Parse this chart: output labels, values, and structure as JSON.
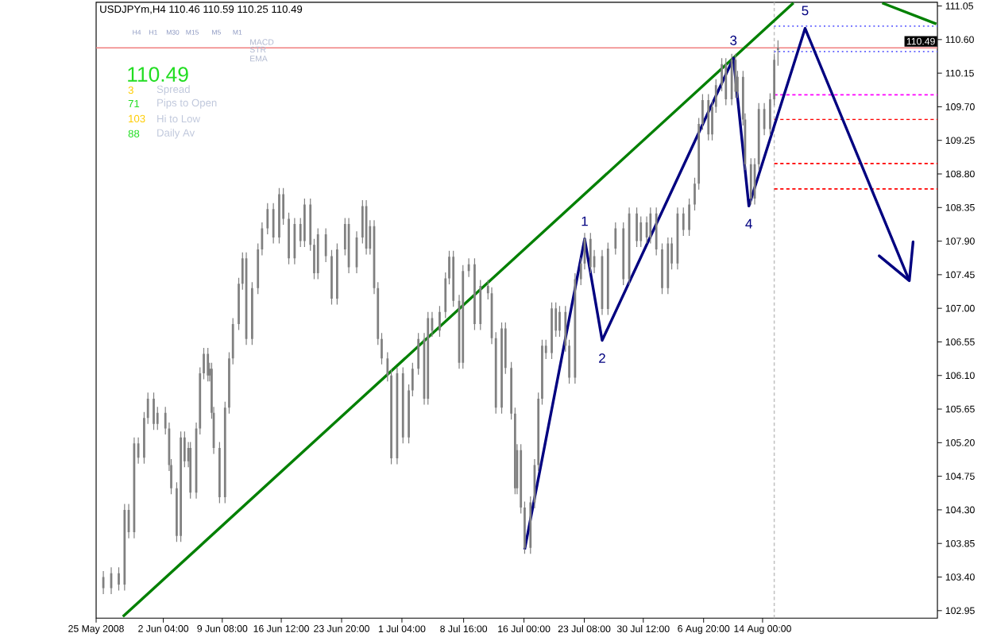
{
  "chart_data": {
    "type": "candlestick",
    "title": "USDJPYm,H4 110.46 110.59 110.25 110.49",
    "color": "#808080",
    "x": [
      "2008-05-25T21:00",
      "2008-05-26T20:00",
      "2008-05-27T18:00",
      "2008-05-28T11:00",
      "2008-05-28T23:00",
      "2008-05-29T15:00",
      "2008-05-30T03:00",
      "2008-05-30T20:00",
      "2008-05-31T07:00",
      "2008-06-01T00:00",
      "2008-06-01T11:00",
      "2008-06-02T10:00",
      "2008-06-02T21:00",
      "2008-06-03T03:00",
      "2008-06-03T19:00",
      "2008-06-04T07:00",
      "2008-06-04T18:00",
      "2008-06-05T05:00",
      "2008-06-05T11:00",
      "2008-06-06T04:00",
      "2008-06-06T15:00",
      "2008-06-07T02:00",
      "2008-06-07T14:00",
      "2008-06-07T19:00",
      "2008-06-08T01:00",
      "2008-06-08T07:00",
      "2008-06-09T00:00",
      "2008-06-09T16:00",
      "2008-06-10T04:00",
      "2008-06-10T15:00",
      "2008-06-11T08:00",
      "2008-06-11T19:00",
      "2008-06-12T06:00",
      "2008-06-12T23:00",
      "2008-06-13T16:00",
      "2008-06-14T04:00",
      "2008-06-14T20:00",
      "2008-06-15T13:00",
      "2008-06-16T06:00",
      "2008-06-16T18:00",
      "2008-06-17T10:00",
      "2008-06-18T03:00",
      "2008-06-18T20:00",
      "2008-06-19T08:00",
      "2008-06-20T01:00",
      "2008-06-20T12:00",
      "2008-06-20T23:00",
      "2008-06-21T22:00",
      "2008-06-22T15:00",
      "2008-06-23T07:00",
      "2008-06-24T06:00",
      "2008-06-24T17:00",
      "2008-06-25T16:00",
      "2008-06-26T09:00",
      "2008-06-26T20:00",
      "2008-06-27T07:00",
      "2008-06-27T19:00",
      "2008-06-28T06:00",
      "2008-06-28T17:00",
      "2008-06-29T10:00",
      "2008-06-29T21:00",
      "2008-06-30T14:00",
      "2008-07-01T07:00",
      "2008-07-02T00:00",
      "2008-07-02T11:00",
      "2008-07-03T04:00",
      "2008-07-03T21:00",
      "2008-07-04T08:00",
      "2008-07-04T20:00",
      "2008-07-05T18:00",
      "2008-07-06T11:00",
      "2008-07-06T22:00",
      "2008-07-07T10:00",
      "2008-07-08T03:00",
      "2008-07-08T14:00",
      "2008-07-09T07:00",
      "2008-07-10T00:00",
      "2008-07-10T17:00",
      "2008-07-11T15:00",
      "2008-07-12T02:00",
      "2008-07-12T14:00",
      "2008-07-13T07:00",
      "2008-07-13T18:00",
      "2008-07-14T11:00",
      "2008-07-14T22:00",
      "2008-07-15T04:00",
      "2008-07-15T15:00",
      "2008-07-16T02:00",
      "2008-07-16T19:00",
      "2008-07-17T07:00",
      "2008-07-17T18:00",
      "2008-07-18T05:00",
      "2008-07-18T16:00",
      "2008-07-19T09:00",
      "2008-07-19T21:00",
      "2008-07-20T08:00",
      "2008-07-21T01:00",
      "2008-07-21T12:00",
      "2008-07-22T05:00",
      "2008-07-22T22:00",
      "2008-07-23T09:00",
      "2008-07-24T02:00",
      "2008-07-24T13:00",
      "2008-07-25T12:00",
      "2008-07-26T05:00",
      "2008-07-27T03:00",
      "2008-07-28T02:00",
      "2008-07-28T19:00",
      "2008-07-29T17:00",
      "2008-07-30T05:00",
      "2008-07-30T22:00",
      "2008-07-31T09:00",
      "2008-08-01T02:00",
      "2008-08-01T19:00",
      "2008-08-02T12:00",
      "2008-08-02T23:00",
      "2008-08-03T16:00",
      "2008-08-04T09:00",
      "2008-08-05T02:00",
      "2008-08-05T18:00",
      "2008-08-06T06:00",
      "2008-08-06T17:00",
      "2008-08-07T10:00",
      "2008-08-07T21:00",
      "2008-08-08T08:00",
      "2008-08-09T01:00",
      "2008-08-09T13:00",
      "2008-08-10T06:00",
      "2008-08-10T17:00",
      "2008-08-10T23:00",
      "2008-08-11T15:00",
      "2008-08-11T21:00",
      "2008-08-12T14:00",
      "2008-08-13T01:00",
      "2008-08-13T13:00",
      "2008-08-14T05:00",
      "2008-08-14T22:00",
      "2008-08-15T10:00",
      "2008-08-15T21:00"
    ],
    "ohlc": [
      [
        103.4,
        103.48,
        103.17,
        103.25
      ],
      [
        103.25,
        103.53,
        103.17,
        103.45
      ],
      [
        103.45,
        103.53,
        103.22,
        103.3
      ],
      [
        103.3,
        104.38,
        103.22,
        104.3
      ],
      [
        104.3,
        104.38,
        103.92,
        104.0
      ],
      [
        104.0,
        105.27,
        103.92,
        105.19
      ],
      [
        105.19,
        105.27,
        104.92,
        105.0
      ],
      [
        105.0,
        105.61,
        104.92,
        105.53
      ],
      [
        105.53,
        105.87,
        105.45,
        105.79
      ],
      [
        105.79,
        105.87,
        105.37,
        105.45
      ],
      [
        105.45,
        105.68,
        105.37,
        105.6
      ],
      [
        105.6,
        105.68,
        105.31,
        105.39
      ],
      [
        105.39,
        105.47,
        104.82,
        104.9
      ],
      [
        104.9,
        104.98,
        104.51,
        104.59
      ],
      [
        104.59,
        104.67,
        103.87,
        103.95
      ],
      [
        103.95,
        105.35,
        103.87,
        105.27
      ],
      [
        105.27,
        105.35,
        104.87,
        104.95
      ],
      [
        104.95,
        105.21,
        104.87,
        105.13
      ],
      [
        105.13,
        105.21,
        104.45,
        104.53
      ],
      [
        104.53,
        105.47,
        104.45,
        105.39
      ],
      [
        105.39,
        106.21,
        105.31,
        106.13
      ],
      [
        106.13,
        106.47,
        106.05,
        106.39
      ],
      [
        106.39,
        106.47,
        106.02,
        106.1
      ],
      [
        106.1,
        106.27,
        106.02,
        106.19
      ],
      [
        106.19,
        106.27,
        105.52,
        105.6
      ],
      [
        105.6,
        105.68,
        105.05,
        105.13
      ],
      [
        105.13,
        105.21,
        104.39,
        104.47
      ],
      [
        104.47,
        105.75,
        104.39,
        105.67
      ],
      [
        105.67,
        106.41,
        105.59,
        106.33
      ],
      [
        106.33,
        106.87,
        106.25,
        106.79
      ],
      [
        106.79,
        107.41,
        106.71,
        107.33
      ],
      [
        107.33,
        107.75,
        107.25,
        107.67
      ],
      [
        107.67,
        107.75,
        106.51,
        106.59
      ],
      [
        106.59,
        107.35,
        106.51,
        107.27
      ],
      [
        107.27,
        107.87,
        107.19,
        107.79
      ],
      [
        107.79,
        108.15,
        107.71,
        108.07
      ],
      [
        108.07,
        108.41,
        107.99,
        108.33
      ],
      [
        108.33,
        108.41,
        107.87,
        107.95
      ],
      [
        107.95,
        108.61,
        107.87,
        108.53
      ],
      [
        108.53,
        108.61,
        108.12,
        108.2
      ],
      [
        108.2,
        108.28,
        107.59,
        107.67
      ],
      [
        107.67,
        108.21,
        107.59,
        108.13
      ],
      [
        108.13,
        108.21,
        107.82,
        107.9
      ],
      [
        107.9,
        108.47,
        107.82,
        108.39
      ],
      [
        108.39,
        108.47,
        107.77,
        107.85
      ],
      [
        107.85,
        107.93,
        107.39,
        107.47
      ],
      [
        107.47,
        108.07,
        107.39,
        107.99
      ],
      [
        107.99,
        108.07,
        107.62,
        107.7
      ],
      [
        107.7,
        107.78,
        107.05,
        107.13
      ],
      [
        107.13,
        107.87,
        107.05,
        107.79
      ],
      [
        107.79,
        108.21,
        107.71,
        108.13
      ],
      [
        108.13,
        108.21,
        107.47,
        107.55
      ],
      [
        107.55,
        108.03,
        107.47,
        107.95
      ],
      [
        107.95,
        108.45,
        107.87,
        108.37
      ],
      [
        108.37,
        108.45,
        107.72,
        107.8
      ],
      [
        107.8,
        108.18,
        107.72,
        108.1
      ],
      [
        108.1,
        108.18,
        107.19,
        107.27
      ],
      [
        107.27,
        107.35,
        106.51,
        106.59
      ],
      [
        106.59,
        106.67,
        106.25,
        106.33
      ],
      [
        106.33,
        106.41,
        106.02,
        106.1
      ],
      [
        106.1,
        106.18,
        104.91,
        104.99
      ],
      [
        104.99,
        106.21,
        104.91,
        106.13
      ],
      [
        106.13,
        106.21,
        105.19,
        105.27
      ],
      [
        105.27,
        105.98,
        105.19,
        105.9
      ],
      [
        105.9,
        106.27,
        105.82,
        106.19
      ],
      [
        106.19,
        106.67,
        106.11,
        106.59
      ],
      [
        106.59,
        106.67,
        105.71,
        105.79
      ],
      [
        105.79,
        106.95,
        105.71,
        106.87
      ],
      [
        106.87,
        106.95,
        106.62,
        106.7
      ],
      [
        106.7,
        107.03,
        106.62,
        106.95
      ],
      [
        106.95,
        107.48,
        106.87,
        107.4
      ],
      [
        107.4,
        107.77,
        107.32,
        107.69
      ],
      [
        107.69,
        107.77,
        107.02,
        107.1
      ],
      [
        107.1,
        107.18,
        106.19,
        106.27
      ],
      [
        106.27,
        107.58,
        106.19,
        107.5
      ],
      [
        107.5,
        107.67,
        107.42,
        107.59
      ],
      [
        107.59,
        107.67,
        106.71,
        106.79
      ],
      [
        106.79,
        107.38,
        106.71,
        107.3
      ],
      [
        107.3,
        107.38,
        107.12,
        107.2
      ],
      [
        107.2,
        107.28,
        106.52,
        106.6
      ],
      [
        106.6,
        106.68,
        105.59,
        105.67
      ],
      [
        105.67,
        106.81,
        105.59,
        106.73
      ],
      [
        106.73,
        106.81,
        106.12,
        106.2
      ],
      [
        106.2,
        106.28,
        105.51,
        105.59
      ],
      [
        105.59,
        105.67,
        104.51,
        104.59
      ],
      [
        104.59,
        105.18,
        104.51,
        105.1
      ],
      [
        105.1,
        105.18,
        104.25,
        104.33
      ],
      [
        104.33,
        104.41,
        103.71,
        103.79
      ],
      [
        103.79,
        104.48,
        103.71,
        104.4
      ],
      [
        104.4,
        104.98,
        104.32,
        104.9
      ],
      [
        104.9,
        105.87,
        104.82,
        105.79
      ],
      [
        105.79,
        106.58,
        105.71,
        106.5
      ],
      [
        106.5,
        106.58,
        106.32,
        106.4
      ],
      [
        106.4,
        107.08,
        106.32,
        107.0
      ],
      [
        107.0,
        107.08,
        106.62,
        106.7
      ],
      [
        106.7,
        107.03,
        106.62,
        106.95
      ],
      [
        106.95,
        107.03,
        106.42,
        106.5
      ],
      [
        106.5,
        106.58,
        105.99,
        106.07
      ],
      [
        106.07,
        107.47,
        105.99,
        107.39
      ],
      [
        107.39,
        107.68,
        107.31,
        107.6
      ],
      [
        107.6,
        108.01,
        107.52,
        107.93
      ],
      [
        107.93,
        108.01,
        107.47,
        107.55
      ],
      [
        107.55,
        107.78,
        107.47,
        107.7
      ],
      [
        107.7,
        107.78,
        106.91,
        106.99
      ],
      [
        106.99,
        107.88,
        106.91,
        107.8
      ],
      [
        107.8,
        108.15,
        107.72,
        108.07
      ],
      [
        108.07,
        108.15,
        107.31,
        107.39
      ],
      [
        107.39,
        108.35,
        107.31,
        108.27
      ],
      [
        108.27,
        108.35,
        107.82,
        107.9
      ],
      [
        107.9,
        108.23,
        107.82,
        108.15
      ],
      [
        108.15,
        108.23,
        107.87,
        107.95
      ],
      [
        107.95,
        108.35,
        107.87,
        108.27
      ],
      [
        108.27,
        108.35,
        107.71,
        107.79
      ],
      [
        107.79,
        107.87,
        107.19,
        107.27
      ],
      [
        107.27,
        107.95,
        107.19,
        107.87
      ],
      [
        107.87,
        107.95,
        107.52,
        107.6
      ],
      [
        107.6,
        108.35,
        107.52,
        108.27
      ],
      [
        108.27,
        108.35,
        107.97,
        108.05
      ],
      [
        108.05,
        108.47,
        107.97,
        108.39
      ],
      [
        108.39,
        108.75,
        108.31,
        108.67
      ],
      [
        108.67,
        109.55,
        108.59,
        109.47
      ],
      [
        109.47,
        109.87,
        109.39,
        109.79
      ],
      [
        109.79,
        109.87,
        109.25,
        109.33
      ],
      [
        109.33,
        109.78,
        109.25,
        109.7
      ],
      [
        109.7,
        110.07,
        109.62,
        109.99
      ],
      [
        109.99,
        110.35,
        109.91,
        110.27
      ],
      [
        110.27,
        110.35,
        109.72,
        109.8
      ],
      [
        109.8,
        110.41,
        109.72,
        110.33
      ],
      [
        110.33,
        110.41,
        109.82,
        109.9
      ],
      [
        109.9,
        110.18,
        109.82,
        110.1
      ],
      [
        110.1,
        110.18,
        109.45,
        109.53
      ],
      [
        109.53,
        109.61,
        108.85,
        108.93
      ],
      [
        108.93,
        109.01,
        108.39,
        108.47
      ],
      [
        108.47,
        109.01,
        108.39,
        108.93
      ],
      [
        108.93,
        109.75,
        108.85,
        109.67
      ],
      [
        109.67,
        109.75,
        109.32,
        109.4
      ],
      [
        109.4,
        109.88,
        109.32,
        109.8
      ],
      [
        109.8,
        110.41,
        109.72,
        110.33
      ],
      [
        110.46,
        110.59,
        110.25,
        110.49
      ]
    ],
    "series": [
      {
        "type": "line",
        "x": [
          "2008-05-28T06:00",
          "2008-08-17T18:00"
        ],
        "values": [
          102.87,
          111.09
        ],
        "color": "#008000"
      },
      {
        "type": "line",
        "x": [
          "2008-08-28T13:00",
          "2008-09-04T03:00"
        ],
        "values": [
          111.09,
          110.81
        ],
        "color": "#008000"
      },
      {
        "type": "line",
        "x": [
          "2008-08-15T10:00",
          "2008-09-04T06:00"
        ],
        "values": [
          110.78,
          110.78
        ],
        "color": "#6060ff",
        "line_style": "dotted"
      },
      {
        "type": "line",
        "x": [
          "2008-08-15T10:00",
          "2008-09-04T06:00"
        ],
        "values": [
          110.44,
          110.44
        ],
        "color": "#6060ff",
        "line_style": "dotted"
      },
      {
        "type": "line",
        "x": [
          "2008-08-15T10:00",
          "2008-09-04T06:00"
        ],
        "values": [
          109.86,
          109.86
        ],
        "color": "#ff00ff",
        "line_style": "dashed"
      },
      {
        "type": "line",
        "x": [
          "2008-08-15T10:00",
          "2008-09-04T06:00"
        ],
        "values": [
          109.53,
          109.53
        ],
        "color": "#ff0000",
        "line_style": "dashed"
      },
      {
        "type": "line",
        "x": [
          "2008-08-15T10:00",
          "2008-09-04T06:00"
        ],
        "values": [
          108.94,
          108.94
        ],
        "color": "#ff0000",
        "line_style": "dashed"
      },
      {
        "type": "line",
        "x": [
          "2008-08-15T10:00",
          "2008-09-04T06:00"
        ],
        "values": [
          108.6,
          108.6
        ],
        "color": "#ff0000",
        "line_style": "dashed"
      },
      {
        "type": "line",
        "x": [
          "2008-07-16T02:00",
          "2008-07-23T09:00",
          "2008-07-25T12:00",
          "2008-08-10T11:00",
          "2008-08-12T08:00",
          "2008-08-19T04:00",
          "2008-08-31T20:00"
        ],
        "values": [
          103.77,
          107.93,
          106.57,
          110.35,
          108.37,
          110.75,
          107.37
        ],
        "color": "#000080"
      }
    ],
    "ref_lines": [
      {
        "axis": "y",
        "value": 110.49,
        "label": "110.49",
        "color": "#f08080"
      },
      {
        "axis": "x",
        "value": "2008-08-15T10:00",
        "color": "#c0c0c0",
        "line_style": "dashed"
      }
    ],
    "annotations": [
      "H4",
      "H1",
      "M30",
      "M15",
      "M5",
      "M1",
      "MACD",
      "STR",
      "EMA",
      "110.49",
      "3",
      "Spread",
      "71",
      "Pips to Open",
      "103",
      "Hi to Low",
      "88",
      "Daily Av",
      {
        "text": "1",
        "x": "2008-07-23T09:00",
        "y": 107.93
      },
      {
        "text": "2",
        "x": "2008-07-25T12:00",
        "y": 106.57
      },
      {
        "text": "3",
        "x": "2008-08-10T11:00",
        "y": 110.35
      },
      {
        "text": "4",
        "x": "2008-08-12T08:00",
        "y": 108.37
      },
      {
        "text": "5",
        "x": "2008-08-19T04:00",
        "y": 110.75
      }
    ],
    "xlim": [
      "2008-05-25",
      "2008-09-04T06:00"
    ],
    "ylim": [
      102.85,
      111.1
    ],
    "xticks": [
      {
        "value": "2008-05-25",
        "label": "25 May 2008"
      },
      {
        "value": "2008-06-02T04:00",
        "label": "2 Jun 04:00"
      },
      {
        "value": "2008-06-09T08:00",
        "label": "9 Jun 08:00"
      },
      {
        "value": "2008-06-16T12:00",
        "label": "16 Jun 12:00"
      },
      {
        "value": "2008-06-23T20:00",
        "label": "23 Jun 20:00"
      },
      {
        "value": "2008-07-01T04:00",
        "label": "1 Jul 04:00"
      },
      {
        "value": "2008-07-08T16:00",
        "label": "8 Jul 16:00"
      },
      {
        "value": "2008-07-16T00:00",
        "label": "16 Jul 00:00"
      },
      {
        "value": "2008-07-23T08:00",
        "label": "23 Jul 08:00"
      },
      {
        "value": "2008-07-30T12:00",
        "label": "30 Jul 12:00"
      },
      {
        "value": "2008-08-06T20:00",
        "label": "6 Aug 20:00"
      },
      {
        "value": "2008-08-14T00:00",
        "label": "14 Aug 00:00"
      }
    ],
    "yticks": [
      111.05,
      {
        "value": 110.6,
        "label": "110.60"
      },
      110.15,
      {
        "value": 109.7,
        "label": "109.70"
      },
      109.25,
      {
        "value": 108.8,
        "label": "108.80"
      },
      108.35,
      {
        "value": 107.9,
        "label": "107.90"
      },
      107.45,
      {
        "value": 107,
        "label": "107.00"
      },
      106.55,
      {
        "value": 106.1,
        "label": "106.10"
      },
      105.65,
      {
        "value": 105.2,
        "label": "105.20"
      },
      104.75,
      {
        "value": 104.3,
        "label": "104.30"
      },
      103.85,
      {
        "value": 103.4,
        "label": "103.40"
      },
      102.95
    ]
  }
}
